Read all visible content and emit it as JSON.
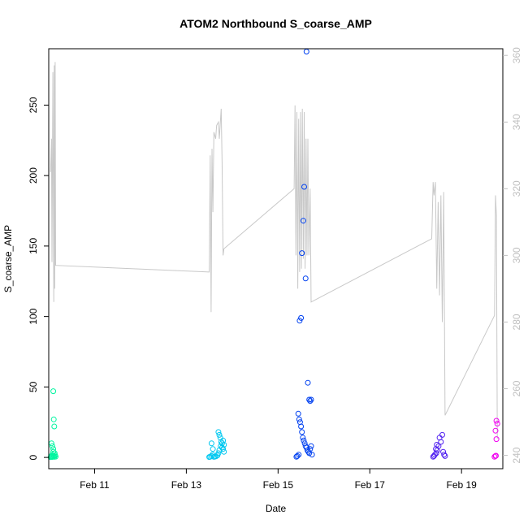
{
  "chart_data": {
    "type": "scatter",
    "title": "ATOM2 Northbound S_coarse_AMP",
    "xlabel": "Date",
    "ylabel": "S_coarse_AMP",
    "x_unit": "date (February, days)",
    "xlim": [
      10.0,
      19.9
    ],
    "ylim": [
      -8,
      290
    ],
    "x_ticks": [
      {
        "value": 11,
        "label": "Feb 11"
      },
      {
        "value": 13,
        "label": "Feb 13"
      },
      {
        "value": 15,
        "label": "Feb 15"
      },
      {
        "value": 17,
        "label": "Feb 17"
      },
      {
        "value": 19,
        "label": "Feb 19"
      }
    ],
    "y_ticks": [
      0,
      50,
      100,
      150,
      200,
      250
    ],
    "y2_ticks": [
      240,
      260,
      280,
      300,
      320,
      340,
      360
    ],
    "y2lim": [
      236,
      362
    ],
    "grid": false,
    "legend": "none",
    "secondary_line_color": "#c8c8c8",
    "secondary_line": [
      [
        10.04,
        325
      ],
      [
        10.06,
        335
      ],
      [
        10.07,
        298
      ],
      [
        10.09,
        355
      ],
      [
        10.11,
        286
      ],
      [
        10.12,
        357
      ],
      [
        10.13,
        290
      ],
      [
        10.14,
        358
      ],
      [
        10.15,
        297
      ],
      [
        13.5,
        295
      ],
      [
        13.52,
        330
      ],
      [
        13.54,
        283
      ],
      [
        13.56,
        332
      ],
      [
        13.58,
        313
      ],
      [
        13.6,
        337
      ],
      [
        13.64,
        335
      ],
      [
        13.66,
        339
      ],
      [
        13.7,
        340
      ],
      [
        13.72,
        335
      ],
      [
        13.76,
        344
      ],
      [
        13.78,
        328
      ],
      [
        13.8,
        300
      ],
      [
        13.82,
        302
      ],
      [
        15.35,
        320
      ],
      [
        15.37,
        345
      ],
      [
        15.39,
        300
      ],
      [
        15.41,
        343
      ],
      [
        15.43,
        290
      ],
      [
        15.45,
        341
      ],
      [
        15.47,
        295
      ],
      [
        15.49,
        343
      ],
      [
        15.51,
        296
      ],
      [
        15.53,
        344
      ],
      [
        15.55,
        299
      ],
      [
        15.57,
        343
      ],
      [
        15.59,
        296
      ],
      [
        15.61,
        335
      ],
      [
        15.63,
        300
      ],
      [
        15.65,
        335
      ],
      [
        15.67,
        300
      ],
      [
        15.7,
        320
      ],
      [
        15.72,
        286
      ],
      [
        18.35,
        305
      ],
      [
        18.38,
        322
      ],
      [
        18.4,
        318
      ],
      [
        18.43,
        322
      ],
      [
        18.46,
        290
      ],
      [
        18.49,
        316
      ],
      [
        18.52,
        288
      ],
      [
        18.55,
        318
      ],
      [
        18.58,
        280
      ],
      [
        18.61,
        319
      ],
      [
        18.64,
        252
      ],
      [
        19.72,
        282
      ],
      [
        19.74,
        318
      ],
      [
        19.76,
        312
      ],
      [
        19.78,
        245
      ]
    ],
    "series": [
      {
        "color": "#00f5a0",
        "x": [
          10.04,
          10.05,
          10.06,
          10.07,
          10.08,
          10.09,
          10.1,
          10.11,
          10.12,
          10.13,
          10.14,
          10.15,
          10.06,
          10.08,
          10.1,
          10.1,
          10.11,
          10.12
        ],
        "y": [
          0.2,
          0.5,
          1,
          0.3,
          2,
          0.8,
          47,
          27,
          22,
          3,
          1.5,
          0.6,
          10,
          8,
          6,
          4,
          1,
          0.4
        ]
      },
      {
        "color": "#00c8f0",
        "x": [
          13.5,
          13.52,
          13.55,
          13.57,
          13.6,
          13.62,
          13.65,
          13.68,
          13.7,
          13.72,
          13.75,
          13.78,
          13.8,
          13.82,
          13.7,
          13.72,
          13.74,
          13.76,
          13.78,
          13.8,
          13.82,
          13.55,
          13.58
        ],
        "y": [
          0.3,
          0.5,
          1,
          2,
          0.4,
          0.6,
          0.8,
          1.5,
          3,
          5,
          8,
          10,
          12,
          9,
          18,
          16,
          14,
          11,
          7,
          6,
          4,
          10,
          6
        ],
        "points_label": ""
      },
      {
        "color": "#0040f0",
        "x": [
          15.4,
          15.42,
          15.45,
          15.47,
          15.5,
          15.52,
          15.55,
          15.57,
          15.6,
          15.62,
          15.65,
          15.68,
          15.7,
          15.72,
          15.44,
          15.46,
          15.48,
          15.5,
          15.52,
          15.54,
          15.56,
          15.58,
          15.6,
          15.62,
          15.64,
          15.66,
          15.68,
          15.7,
          15.72,
          15.74
        ],
        "y": [
          0.5,
          1,
          2,
          97,
          99,
          145,
          168,
          192,
          127,
          288,
          53,
          41,
          40,
          41,
          31,
          27,
          25,
          22,
          18,
          14,
          12,
          10,
          8,
          7,
          5,
          4,
          3,
          6,
          8,
          2
        ]
      },
      {
        "color": "#5020f0",
        "x": [
          18.38,
          18.4,
          18.42,
          18.45,
          18.47,
          18.5,
          18.52,
          18.55,
          18.58,
          18.6,
          18.62,
          18.64,
          18.44,
          18.46
        ],
        "y": [
          0.5,
          1,
          2,
          3,
          5,
          8,
          14,
          11,
          16,
          4,
          2,
          1,
          6,
          9
        ]
      },
      {
        "color": "#f000f0",
        "x": [
          19.72,
          19.74,
          19.76,
          19.78,
          19.74,
          19.76,
          19.75
        ],
        "y": [
          0.5,
          1,
          26,
          24,
          19,
          13,
          1.2
        ]
      }
    ]
  }
}
